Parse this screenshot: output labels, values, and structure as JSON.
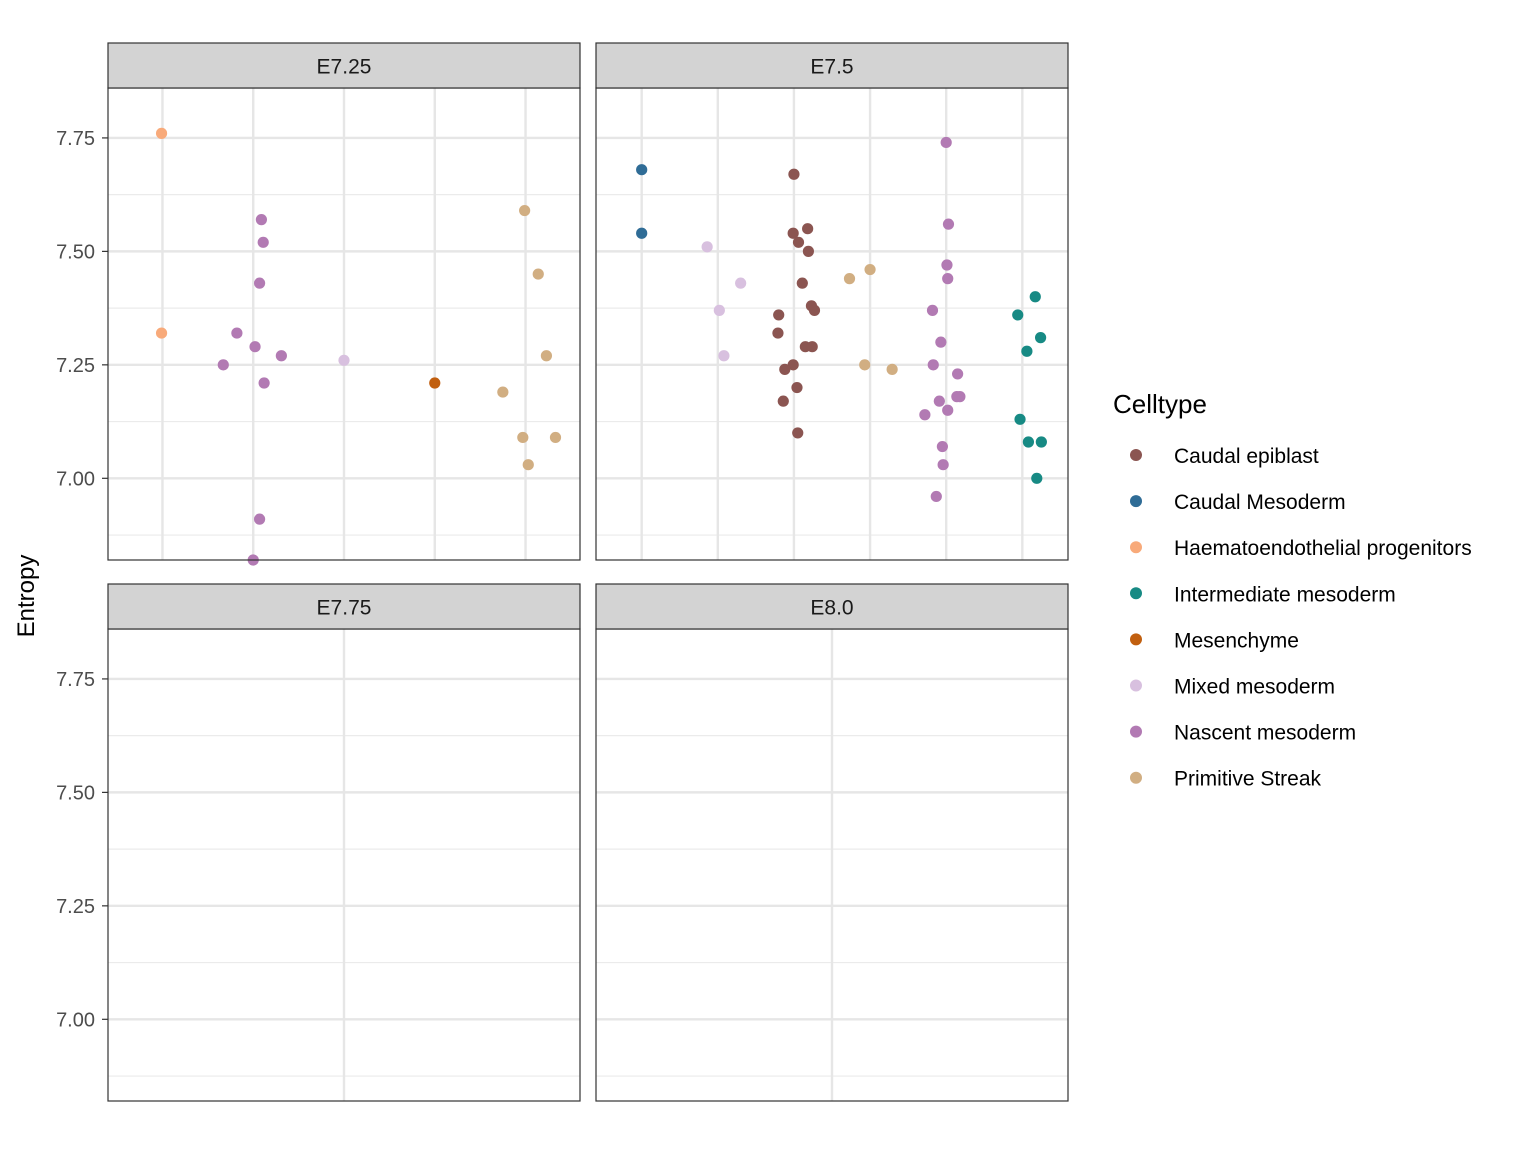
{
  "chart_data": {
    "type": "scatter",
    "ylabel": "Entropy",
    "ylim": [
      6.82,
      7.86
    ],
    "y_ticks": [
      "7.00",
      "7.25",
      "7.50",
      "7.75"
    ],
    "legend": {
      "title": "Celltype",
      "placement": "right",
      "entries": [
        {
          "name": "Caudal epiblast",
          "color": "#8B5551"
        },
        {
          "name": "Caudal Mesoderm",
          "color": "#2F6C96"
        },
        {
          "name": "Haematoendothelial progenitors",
          "color": "#F8AA7A"
        },
        {
          "name": "Intermediate mesoderm",
          "color": "#178A84"
        },
        {
          "name": "Mesenchyme",
          "color": "#C15F0F"
        },
        {
          "name": "Mixed mesoderm",
          "color": "#D8C0DF"
        },
        {
          "name": "Nascent mesoderm",
          "color": "#B27AB3"
        },
        {
          "name": "Primitive Streak",
          "color": "#D1AE82"
        }
      ]
    },
    "facets": [
      {
        "label": "E7.25",
        "categories": [
          "Haematoendothelial progenitors",
          "Nascent mesoderm",
          "Mixed mesoderm",
          "Mesenchyme",
          "Primitive Streak"
        ],
        "points": [
          {
            "celltype": "Haematoendothelial progenitors",
            "x": 0.99,
            "y": 7.76
          },
          {
            "celltype": "Haematoendothelial progenitors",
            "x": 0.99,
            "y": 7.32
          },
          {
            "celltype": "Nascent mesoderm",
            "x": 2.09,
            "y": 7.57
          },
          {
            "celltype": "Nascent mesoderm",
            "x": 2.11,
            "y": 7.52
          },
          {
            "celltype": "Nascent mesoderm",
            "x": 2.07,
            "y": 7.43
          },
          {
            "celltype": "Nascent mesoderm",
            "x": 1.82,
            "y": 7.32
          },
          {
            "celltype": "Nascent mesoderm",
            "x": 2.02,
            "y": 7.29
          },
          {
            "celltype": "Nascent mesoderm",
            "x": 2.31,
            "y": 7.27
          },
          {
            "celltype": "Nascent mesoderm",
            "x": 1.67,
            "y": 7.25
          },
          {
            "celltype": "Nascent mesoderm",
            "x": 2.12,
            "y": 7.21
          },
          {
            "celltype": "Nascent mesoderm",
            "x": 2.07,
            "y": 6.91
          },
          {
            "celltype": "Nascent mesoderm",
            "x": 2.0,
            "y": 6.82
          },
          {
            "celltype": "Mixed mesoderm",
            "x": 3.0,
            "y": 7.26
          },
          {
            "celltype": "Mesenchyme",
            "x": 4.0,
            "y": 7.21
          },
          {
            "celltype": "Primitive Streak",
            "x": 4.99,
            "y": 7.59
          },
          {
            "celltype": "Primitive Streak",
            "x": 5.14,
            "y": 7.45
          },
          {
            "celltype": "Primitive Streak",
            "x": 5.23,
            "y": 7.27
          },
          {
            "celltype": "Primitive Streak",
            "x": 4.75,
            "y": 7.19
          },
          {
            "celltype": "Primitive Streak",
            "x": 4.97,
            "y": 7.09
          },
          {
            "celltype": "Primitive Streak",
            "x": 5.33,
            "y": 7.09
          },
          {
            "celltype": "Primitive Streak",
            "x": 5.03,
            "y": 7.03
          }
        ]
      },
      {
        "label": "E7.5",
        "categories": [
          "Caudal Mesoderm",
          "Mixed mesoderm",
          "Caudal epiblast",
          "Primitive Streak",
          "Nascent mesoderm",
          "Intermediate mesoderm"
        ],
        "points": [
          {
            "celltype": "Caudal Mesoderm",
            "x": 1.0,
            "y": 7.68
          },
          {
            "celltype": "Caudal Mesoderm",
            "x": 1.0,
            "y": 7.54
          },
          {
            "celltype": "Mixed mesoderm",
            "x": 1.86,
            "y": 7.51
          },
          {
            "celltype": "Mixed mesoderm",
            "x": 2.3,
            "y": 7.43
          },
          {
            "celltype": "Mixed mesoderm",
            "x": 2.02,
            "y": 7.37
          },
          {
            "celltype": "Mixed mesoderm",
            "x": 2.08,
            "y": 7.27
          },
          {
            "celltype": "Caudal epiblast",
            "x": 3.0,
            "y": 7.67
          },
          {
            "celltype": "Caudal epiblast",
            "x": 3.18,
            "y": 7.55
          },
          {
            "celltype": "Caudal epiblast",
            "x": 2.99,
            "y": 7.54
          },
          {
            "celltype": "Caudal epiblast",
            "x": 3.06,
            "y": 7.52
          },
          {
            "celltype": "Caudal epiblast",
            "x": 3.19,
            "y": 7.5
          },
          {
            "celltype": "Caudal epiblast",
            "x": 3.11,
            "y": 7.43
          },
          {
            "celltype": "Caudal epiblast",
            "x": 3.23,
            "y": 7.38
          },
          {
            "celltype": "Caudal epiblast",
            "x": 3.27,
            "y": 7.37
          },
          {
            "celltype": "Caudal epiblast",
            "x": 2.8,
            "y": 7.36
          },
          {
            "celltype": "Caudal epiblast",
            "x": 2.79,
            "y": 7.32
          },
          {
            "celltype": "Caudal epiblast",
            "x": 3.15,
            "y": 7.29
          },
          {
            "celltype": "Caudal epiblast",
            "x": 3.24,
            "y": 7.29
          },
          {
            "celltype": "Caudal epiblast",
            "x": 2.99,
            "y": 7.25
          },
          {
            "celltype": "Caudal epiblast",
            "x": 2.88,
            "y": 7.24
          },
          {
            "celltype": "Caudal epiblast",
            "x": 3.04,
            "y": 7.2
          },
          {
            "celltype": "Caudal epiblast",
            "x": 2.86,
            "y": 7.17
          },
          {
            "celltype": "Caudal epiblast",
            "x": 3.05,
            "y": 7.1
          },
          {
            "celltype": "Primitive Streak",
            "x": 4.0,
            "y": 7.46
          },
          {
            "celltype": "Primitive Streak",
            "x": 3.73,
            "y": 7.44
          },
          {
            "celltype": "Primitive Streak",
            "x": 3.93,
            "y": 7.25
          },
          {
            "celltype": "Primitive Streak",
            "x": 4.29,
            "y": 7.24
          },
          {
            "celltype": "Nascent mesoderm",
            "x": 5.0,
            "y": 7.74
          },
          {
            "celltype": "Nascent mesoderm",
            "x": 5.03,
            "y": 7.56
          },
          {
            "celltype": "Nascent mesoderm",
            "x": 5.01,
            "y": 7.47
          },
          {
            "celltype": "Nascent mesoderm",
            "x": 5.02,
            "y": 7.44
          },
          {
            "celltype": "Nascent mesoderm",
            "x": 4.82,
            "y": 7.37
          },
          {
            "celltype": "Nascent mesoderm",
            "x": 4.93,
            "y": 7.3
          },
          {
            "celltype": "Nascent mesoderm",
            "x": 4.83,
            "y": 7.25
          },
          {
            "celltype": "Nascent mesoderm",
            "x": 5.15,
            "y": 7.23
          },
          {
            "celltype": "Nascent mesoderm",
            "x": 5.14,
            "y": 7.18
          },
          {
            "celltype": "Nascent mesoderm",
            "x": 5.18,
            "y": 7.18
          },
          {
            "celltype": "Nascent mesoderm",
            "x": 4.91,
            "y": 7.17
          },
          {
            "celltype": "Nascent mesoderm",
            "x": 5.02,
            "y": 7.15
          },
          {
            "celltype": "Nascent mesoderm",
            "x": 4.72,
            "y": 7.14
          },
          {
            "celltype": "Nascent mesoderm",
            "x": 4.95,
            "y": 7.07
          },
          {
            "celltype": "Nascent mesoderm",
            "x": 4.96,
            "y": 7.03
          },
          {
            "celltype": "Nascent mesoderm",
            "x": 4.87,
            "y": 6.96
          },
          {
            "celltype": "Intermediate mesoderm",
            "x": 6.17,
            "y": 7.4
          },
          {
            "celltype": "Intermediate mesoderm",
            "x": 5.94,
            "y": 7.36
          },
          {
            "celltype": "Intermediate mesoderm",
            "x": 6.24,
            "y": 7.31
          },
          {
            "celltype": "Intermediate mesoderm",
            "x": 6.06,
            "y": 7.28
          },
          {
            "celltype": "Intermediate mesoderm",
            "x": 5.97,
            "y": 7.13
          },
          {
            "celltype": "Intermediate mesoderm",
            "x": 6.08,
            "y": 7.08
          },
          {
            "celltype": "Intermediate mesoderm",
            "x": 6.25,
            "y": 7.08
          },
          {
            "celltype": "Intermediate mesoderm",
            "x": 6.19,
            "y": 7.0
          }
        ]
      },
      {
        "label": "E7.75",
        "categories": [
          ""
        ],
        "points": []
      },
      {
        "label": "E8.0",
        "categories": [
          ""
        ],
        "points": []
      }
    ]
  }
}
